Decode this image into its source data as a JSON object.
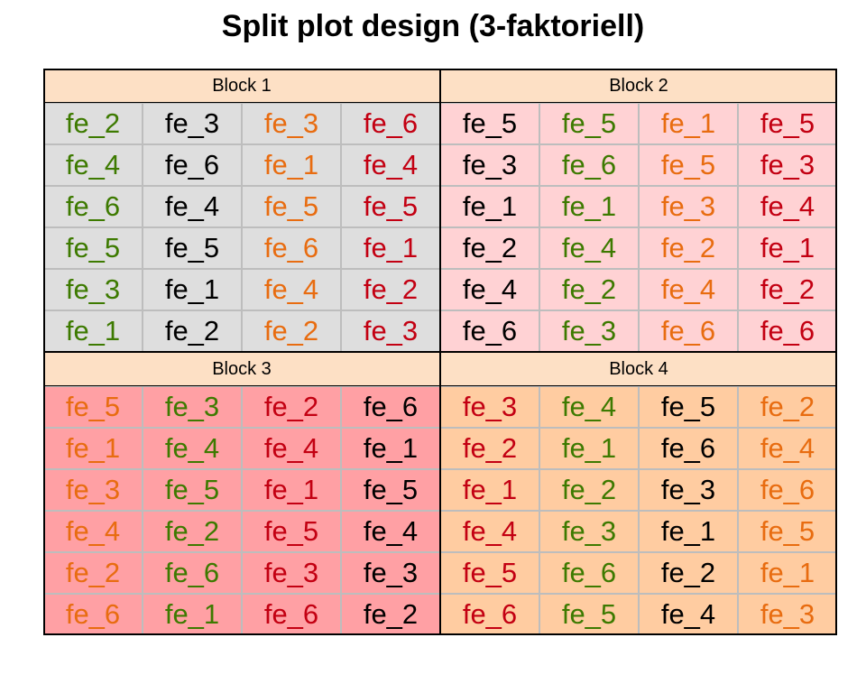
{
  "title": "Split plot design (3-faktoriell)",
  "colors": {
    "header_bg": "#fde0c5",
    "block_bg": [
      "#dedede",
      "#ffd2d4",
      "#ffa0a4",
      "#ffcca1"
    ],
    "text": {
      "green": "#3d7a00",
      "black": "#000000",
      "orange": "#e86c10",
      "red": "#c30012"
    }
  },
  "blocks": [
    {
      "label": "Block 1",
      "columns": [
        {
          "color": "green",
          "cells": [
            "fe_2",
            "fe_4",
            "fe_6",
            "fe_5",
            "fe_3",
            "fe_1"
          ]
        },
        {
          "color": "black",
          "cells": [
            "fe_3",
            "fe_6",
            "fe_4",
            "fe_5",
            "fe_1",
            "fe_2"
          ]
        },
        {
          "color": "orange",
          "cells": [
            "fe_3",
            "fe_1",
            "fe_5",
            "fe_6",
            "fe_4",
            "fe_2"
          ]
        },
        {
          "color": "red",
          "cells": [
            "fe_6",
            "fe_4",
            "fe_5",
            "fe_1",
            "fe_2",
            "fe_3"
          ]
        }
      ]
    },
    {
      "label": "Block 2",
      "columns": [
        {
          "color": "black",
          "cells": [
            "fe_5",
            "fe_3",
            "fe_1",
            "fe_2",
            "fe_4",
            "fe_6"
          ]
        },
        {
          "color": "green",
          "cells": [
            "fe_5",
            "fe_6",
            "fe_1",
            "fe_4",
            "fe_2",
            "fe_3"
          ]
        },
        {
          "color": "orange",
          "cells": [
            "fe_1",
            "fe_5",
            "fe_3",
            "fe_2",
            "fe_4",
            "fe_6"
          ]
        },
        {
          "color": "red",
          "cells": [
            "fe_5",
            "fe_3",
            "fe_4",
            "fe_1",
            "fe_2",
            "fe_6"
          ]
        }
      ]
    },
    {
      "label": "Block 3",
      "columns": [
        {
          "color": "orange",
          "cells": [
            "fe_5",
            "fe_1",
            "fe_3",
            "fe_4",
            "fe_2",
            "fe_6"
          ]
        },
        {
          "color": "green",
          "cells": [
            "fe_3",
            "fe_4",
            "fe_5",
            "fe_2",
            "fe_6",
            "fe_1"
          ]
        },
        {
          "color": "red",
          "cells": [
            "fe_2",
            "fe_4",
            "fe_1",
            "fe_5",
            "fe_3",
            "fe_6"
          ]
        },
        {
          "color": "black",
          "cells": [
            "fe_6",
            "fe_1",
            "fe_5",
            "fe_4",
            "fe_3",
            "fe_2"
          ]
        }
      ]
    },
    {
      "label": "Block 4",
      "columns": [
        {
          "color": "red",
          "cells": [
            "fe_3",
            "fe_2",
            "fe_1",
            "fe_4",
            "fe_5",
            "fe_6"
          ]
        },
        {
          "color": "green",
          "cells": [
            "fe_4",
            "fe_1",
            "fe_2",
            "fe_3",
            "fe_6",
            "fe_5"
          ]
        },
        {
          "color": "black",
          "cells": [
            "fe_5",
            "fe_6",
            "fe_3",
            "fe_1",
            "fe_2",
            "fe_4"
          ]
        },
        {
          "color": "orange",
          "cells": [
            "fe_2",
            "fe_4",
            "fe_6",
            "fe_5",
            "fe_1",
            "fe_3"
          ]
        }
      ]
    }
  ]
}
